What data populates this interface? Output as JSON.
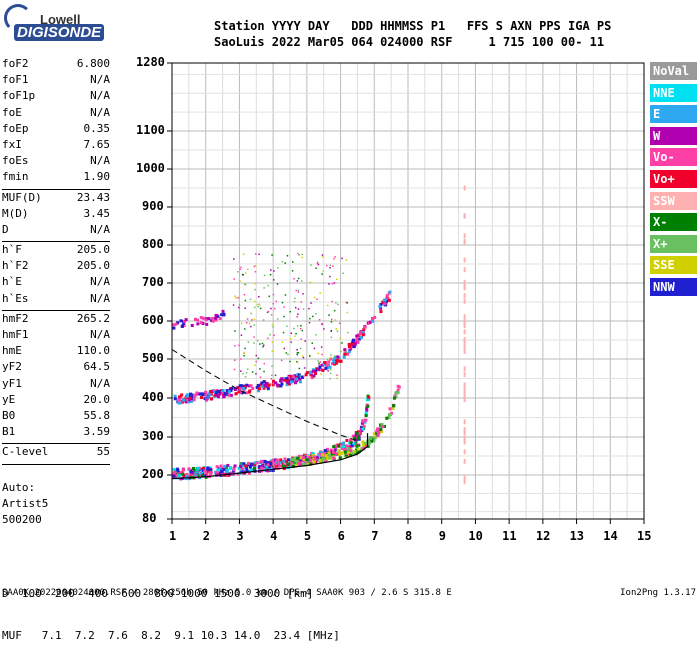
{
  "logo": {
    "top": "Lowell",
    "main": "DIGISONDE"
  },
  "header": {
    "line1": "Station YYYY DAY   DDD HHMMSS P1   FFS S AXN PPS IGA PS",
    "line2": "SaoLuis 2022 Mar05 064 024000 RSF     1 715 100 00- 11"
  },
  "params": [
    {
      "k": "foF2",
      "v": "6.800"
    },
    {
      "k": "foF1",
      "v": "N/A"
    },
    {
      "k": "foF1p",
      "v": "N/A"
    },
    {
      "k": "foE",
      "v": "N/A"
    },
    {
      "k": "foEp",
      "v": "0.35"
    },
    {
      "k": "fxI",
      "v": "7.65"
    },
    {
      "k": "foEs",
      "v": "N/A"
    },
    {
      "k": "fmin",
      "v": "1.90"
    },
    {
      "k": "MUF(D)",
      "v": "23.43",
      "sep": true
    },
    {
      "k": "M(D)",
      "v": "3.45"
    },
    {
      "k": "D",
      "v": "N/A"
    },
    {
      "k": "h`F",
      "v": "205.0",
      "sep": true
    },
    {
      "k": "h`F2",
      "v": "205.0"
    },
    {
      "k": "h`E",
      "v": "N/A"
    },
    {
      "k": "h`Es",
      "v": "N/A"
    },
    {
      "k": "hmF2",
      "v": "265.2",
      "sep": true
    },
    {
      "k": "hmF1",
      "v": "N/A"
    },
    {
      "k": "hmE",
      "v": "110.0"
    },
    {
      "k": "yF2",
      "v": "64.5"
    },
    {
      "k": "yF1",
      "v": "N/A"
    },
    {
      "k": "yE",
      "v": "20.0"
    },
    {
      "k": "B0",
      "v": "55.8"
    },
    {
      "k": "B1",
      "v": "3.59"
    },
    {
      "k": "C-level",
      "v": "55",
      "sep": true
    }
  ],
  "auto": {
    "l1": "Auto:",
    "l2": "Artist5",
    "l3": "500200"
  },
  "legend": [
    {
      "name": "NoVal",
      "color": "#9a9a9a"
    },
    {
      "name": "NNE",
      "color": "#00e0f0"
    },
    {
      "name": "E",
      "color": "#2ea8f0"
    },
    {
      "name": "W",
      "color": "#b000b0"
    },
    {
      "name": "Vo-",
      "color": "#ff3fa8"
    },
    {
      "name": "Vo+",
      "color": "#f0002a"
    },
    {
      "name": "SSW",
      "color": "#ffb0b0"
    },
    {
      "name": "X-",
      "color": "#008000"
    },
    {
      "name": "X+",
      "color": "#68c060"
    },
    {
      "name": "SSE",
      "color": "#d0d000"
    },
    {
      "name": "NNW",
      "color": "#2020d0"
    }
  ],
  "muf_table": {
    "d_label": "D",
    "muf_label": "MUF",
    "d": [
      "100",
      "200",
      "400",
      "600",
      "800",
      "1000",
      "1500",
      "3000"
    ],
    "d_unit": "[km]",
    "muf": [
      "7.1",
      "7.2",
      "7.6",
      "8.2",
      "9.1",
      "10.3",
      "14.0",
      "23.4"
    ],
    "muf_unit": "[MHz]"
  },
  "footer": "SAA0K_2022064024000.RSF / 280fx256h 50 kHz 5.0 km / DPS-4 SAA0K 903 / 2.6 S 315.8 E",
  "footer_right": "Ion2Png 1.3.17",
  "chart_data": {
    "type": "scatter",
    "xlim": [
      1,
      15
    ],
    "x_ticks": [
      1,
      2,
      3,
      4,
      5,
      6,
      7,
      8,
      9,
      10,
      11,
      12,
      13,
      14,
      15
    ],
    "ylim": [
      80,
      1280
    ],
    "y_ticks": [
      80,
      200,
      300,
      400,
      500,
      600,
      700,
      800,
      900,
      1000,
      1100,
      1280
    ],
    "y_scale": "ionogram (virtual height)",
    "grid": true,
    "traces": [
      {
        "name": "O-trace F2 (1st hop)",
        "x": [
          1.0,
          2.0,
          3.0,
          4.0,
          5.0,
          5.5,
          6.0,
          6.3,
          6.5,
          6.7,
          6.8
        ],
        "y": [
          205,
          212,
          220,
          230,
          245,
          255,
          275,
          290,
          310,
          350,
          420
        ]
      },
      {
        "name": "X-trace F2",
        "x": [
          4.5,
          5.5,
          6.3,
          6.8,
          7.2,
          7.5,
          7.7
        ],
        "y": [
          235,
          250,
          265,
          290,
          330,
          380,
          440
        ]
      },
      {
        "name": "2nd hop",
        "x": [
          1.0,
          2.0,
          3.0,
          4.0,
          5.0,
          6.0,
          6.5,
          7.0,
          7.5
        ],
        "y": [
          400,
          410,
          425,
          440,
          460,
          510,
          560,
          620,
          680
        ]
      },
      {
        "name": "3rd hop",
        "x": [
          1.0,
          2.0,
          2.5
        ],
        "y": [
          595,
          605,
          620
        ]
      }
    ],
    "profile_curve": {
      "x": [
        1.0,
        2.0,
        3.0,
        4.0,
        5.0,
        6.0,
        6.5,
        6.8,
        6.8
      ],
      "y": [
        190,
        195,
        205,
        215,
        225,
        240,
        255,
        275,
        310
      ]
    },
    "dashed_curve": {
      "x": [
        1.0,
        2.0,
        3.0,
        4.0,
        5.0,
        6.0,
        6.5
      ],
      "y": [
        525,
        470,
        420,
        380,
        340,
        305,
        290
      ]
    },
    "ssw_column": {
      "x": 9.65,
      "y": [
        180,
        1000
      ]
    }
  }
}
